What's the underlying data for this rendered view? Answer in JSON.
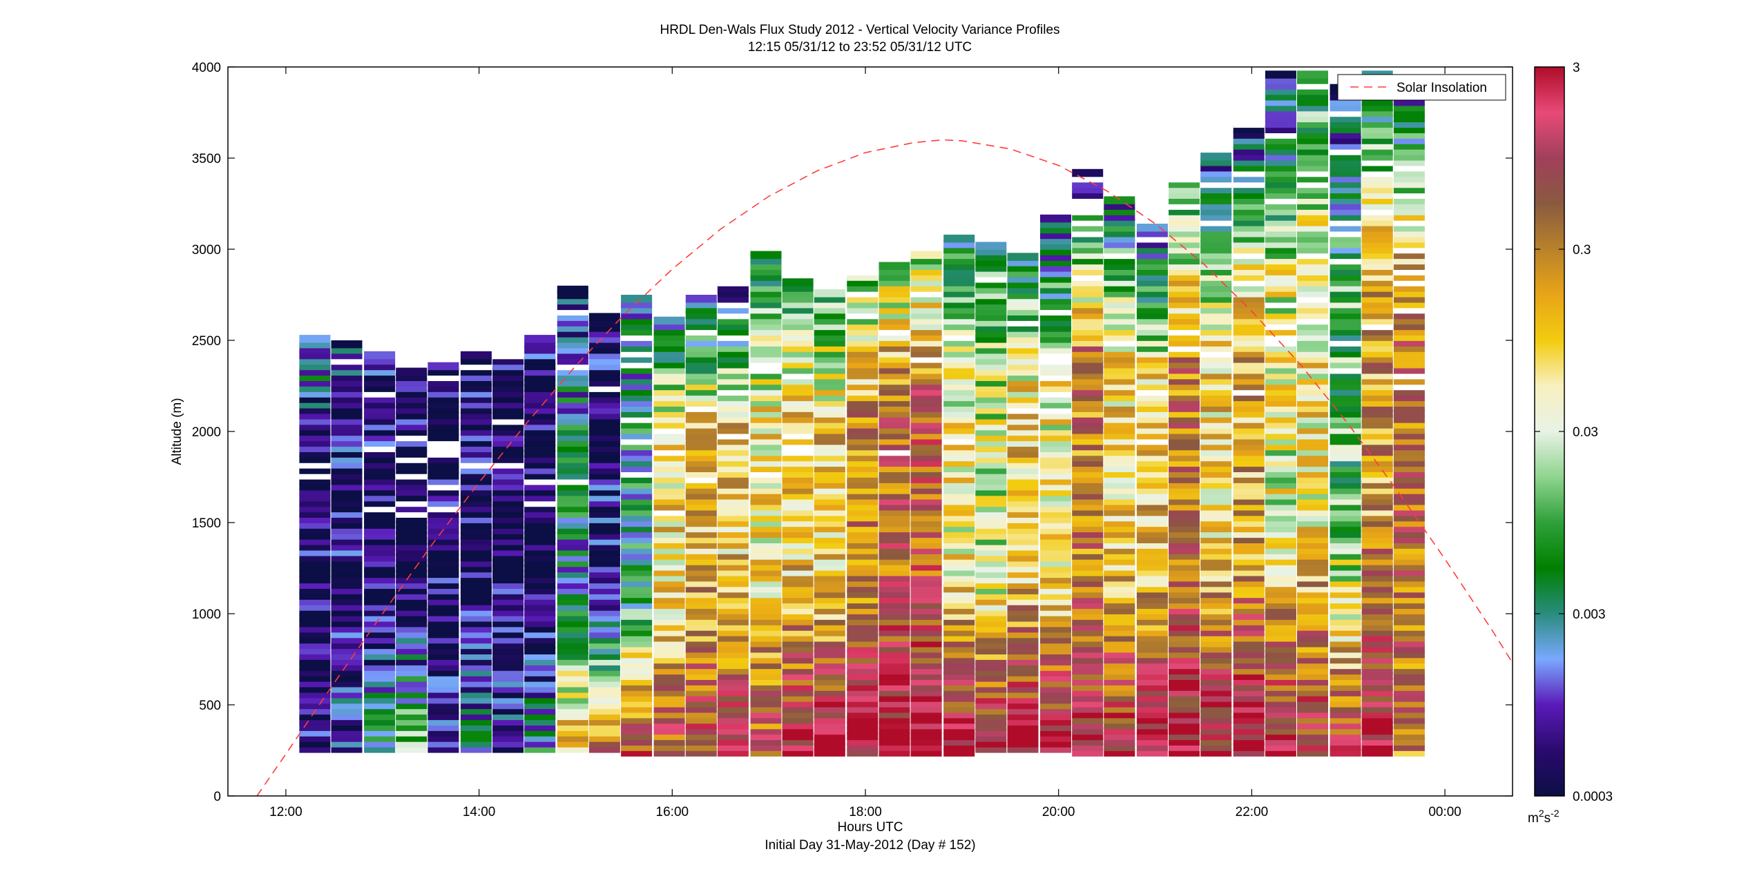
{
  "chart_data": {
    "type": "heatmap",
    "title": "HRDL Den-Wals Flux Study 2012 - Vertical Velocity Variance Profiles",
    "subtitle": "12:15 05/31/12 to 23:52 05/31/12  UTC",
    "xlabel": "Hours UTC",
    "xlabel2": "Initial Day 31-May-2012 (Day # 152)",
    "ylabel": "Altitude (m)",
    "xlim": [
      11.4,
      24.7
    ],
    "ylim": [
      0,
      4000
    ],
    "x_ticks": [
      {
        "value": 12,
        "label": "12:00"
      },
      {
        "value": 14,
        "label": "14:00"
      },
      {
        "value": 16,
        "label": "16:00"
      },
      {
        "value": 18,
        "label": "18:00"
      },
      {
        "value": 20,
        "label": "20:00"
      },
      {
        "value": 22,
        "label": "22:00"
      },
      {
        "value": 24,
        "label": "00:00"
      }
    ],
    "y_ticks": [
      {
        "value": 0,
        "label": "0"
      },
      {
        "value": 500,
        "label": "500"
      },
      {
        "value": 1000,
        "label": "1000"
      },
      {
        "value": 1500,
        "label": "1500"
      },
      {
        "value": 2000,
        "label": "2000"
      },
      {
        "value": 2500,
        "label": "2500"
      },
      {
        "value": 3000,
        "label": "3000"
      },
      {
        "value": 3500,
        "label": "3500"
      },
      {
        "value": 4000,
        "label": "4000"
      }
    ],
    "colorbar": {
      "scale": "log",
      "range": [
        0.0003,
        3
      ],
      "ticks": [
        {
          "value": 0.0003,
          "label": "0.0003"
        },
        {
          "value": 0.003,
          "label": "0.003"
        },
        {
          "value": 0.03,
          "label": "0.03"
        },
        {
          "value": 0.3,
          "label": "0.3"
        },
        {
          "value": 3,
          "label": "3"
        }
      ],
      "unit_base": "m",
      "unit_exp1": "2",
      "unit_mid": "s",
      "unit_exp2": "-2",
      "stops": [
        "#0b0f45",
        "#2a0a6e",
        "#5a1ab8",
        "#7aa8ff",
        "#2a8c7e",
        "#008000",
        "#2fa03a",
        "#8fd48f",
        "#e8f2e6",
        "#f8f0c0",
        "#f2cc10",
        "#e8a418",
        "#b8822a",
        "#8a5a40",
        "#a0405a",
        "#e84a78",
        "#b00c2a"
      ]
    },
    "legend": {
      "entries": [
        "Solar Insolation"
      ],
      "placement": "top-right",
      "line_color": "#ff3b3b"
    },
    "series": [
      {
        "name": "Solar Insolation",
        "style": "dashed",
        "x": [
          11.7,
          12.0,
          12.5,
          13.0,
          13.5,
          14.0,
          14.5,
          15.0,
          15.5,
          16.0,
          16.5,
          17.0,
          17.5,
          18.0,
          18.5,
          18.8,
          19.0,
          19.5,
          20.0,
          20.5,
          21.0,
          21.5,
          22.0,
          22.5,
          23.0,
          23.5,
          24.0,
          24.5,
          24.7
        ],
        "y": [
          0,
          230,
          620,
          1000,
          1370,
          1720,
          2050,
          2360,
          2640,
          2890,
          3110,
          3290,
          3430,
          3530,
          3585,
          3600,
          3595,
          3550,
          3460,
          3320,
          3140,
          2920,
          2660,
          2370,
          2040,
          1680,
          1300,
          900,
          730
        ]
      },
      {
        "name": "Vertical Velocity Variance Profiles",
        "profiles": [
          {
            "t": 12.3,
            "top": 2550,
            "bottom": 250,
            "dom": 0.0004,
            "low": 0.0004,
            "up": 0.003
          },
          {
            "t": 12.63,
            "top": 2500,
            "bottom": 250,
            "dom": 0.0005,
            "low": 0.001,
            "up": 0.001
          },
          {
            "t": 12.97,
            "top": 2450,
            "bottom": 250,
            "dom": 0.0004,
            "low": 0.004,
            "up": 0.0005
          },
          {
            "t": 13.3,
            "top": 2350,
            "bottom": 250,
            "dom": 0.0004,
            "low": 0.02,
            "up": 0.0004
          },
          {
            "t": 13.63,
            "top": 2400,
            "bottom": 250,
            "dom": 0.0004,
            "low": 0.0006,
            "up": 0.0004
          },
          {
            "t": 13.97,
            "top": 2450,
            "bottom": 250,
            "dom": 0.0004,
            "low": 0.003,
            "up": 0.0004
          },
          {
            "t": 14.3,
            "top": 2500,
            "bottom": 250,
            "dom": 0.0004,
            "low": 0.001,
            "up": 0.0004
          },
          {
            "t": 14.63,
            "top": 2550,
            "bottom": 250,
            "dom": 0.0004,
            "low": 0.004,
            "up": 0.0005
          },
          {
            "t": 14.97,
            "top": 2800,
            "bottom": 250,
            "dom": 0.003,
            "low": 0.15,
            "up": 0.001
          },
          {
            "t": 15.3,
            "top": 2650,
            "bottom": 250,
            "dom": 0.0006,
            "low": 0.3,
            "up": 0.0004
          },
          {
            "t": 15.63,
            "top": 2750,
            "bottom": 230,
            "dom": 0.004,
            "low": 1.0,
            "up": 0.002
          },
          {
            "t": 15.97,
            "top": 2650,
            "bottom": 230,
            "dom": 0.08,
            "low": 0.8,
            "up": 0.003
          },
          {
            "t": 16.3,
            "top": 2750,
            "bottom": 230,
            "dom": 0.15,
            "low": 0.9,
            "up": 0.001
          },
          {
            "t": 16.63,
            "top": 2850,
            "bottom": 230,
            "dom": 0.1,
            "low": 2.0,
            "up": 0.0008
          },
          {
            "t": 16.97,
            "top": 3000,
            "bottom": 230,
            "dom": 0.06,
            "low": 0.7,
            "up": 0.005
          },
          {
            "t": 17.3,
            "top": 2850,
            "bottom": 230,
            "dom": 0.1,
            "low": 3.0,
            "up": 0.008
          },
          {
            "t": 17.63,
            "top": 2800,
            "bottom": 230,
            "dom": 0.1,
            "low": 3.0,
            "up": 0.01
          },
          {
            "t": 17.97,
            "top": 2900,
            "bottom": 230,
            "dom": 0.3,
            "low": 3.0,
            "up": 0.01
          },
          {
            "t": 18.3,
            "top": 2950,
            "bottom": 230,
            "dom": 0.5,
            "low": 3.0,
            "up": 0.02
          },
          {
            "t": 18.63,
            "top": 3000,
            "bottom": 230,
            "dom": 0.6,
            "low": 3.0,
            "up": 0.02
          },
          {
            "t": 18.97,
            "top": 3100,
            "bottom": 230,
            "dom": 0.05,
            "low": 3.0,
            "up": 0.005
          },
          {
            "t": 19.3,
            "top": 3050,
            "bottom": 250,
            "dom": 0.03,
            "low": 2.5,
            "up": 0.005
          },
          {
            "t": 19.63,
            "top": 3000,
            "bottom": 250,
            "dom": 0.1,
            "low": 3.0,
            "up": 0.003
          },
          {
            "t": 19.97,
            "top": 3200,
            "bottom": 250,
            "dom": 0.05,
            "low": 2.5,
            "up": 0.001
          },
          {
            "t": 20.3,
            "top": 3450,
            "bottom": 230,
            "dom": 0.3,
            "low": 1.5,
            "up": 0.0008
          },
          {
            "t": 20.63,
            "top": 3300,
            "bottom": 230,
            "dom": 0.08,
            "low": 2.0,
            "up": 0.002
          },
          {
            "t": 20.97,
            "top": 3150,
            "bottom": 230,
            "dom": 0.1,
            "low": 3.0,
            "up": 0.001
          },
          {
            "t": 21.3,
            "top": 3450,
            "bottom": 230,
            "dom": 0.3,
            "low": 3.0,
            "up": 0.004
          },
          {
            "t": 21.63,
            "top": 3550,
            "bottom": 230,
            "dom": 0.08,
            "low": 2.0,
            "up": 0.0008
          },
          {
            "t": 21.97,
            "top": 3750,
            "bottom": 230,
            "dom": 0.15,
            "low": 2.5,
            "up": 0.0005
          },
          {
            "t": 22.3,
            "top": 4000,
            "bottom": 230,
            "dom": 0.04,
            "low": 2.0,
            "up": 0.0008
          },
          {
            "t": 22.63,
            "top": 4000,
            "bottom": 230,
            "dom": 0.06,
            "low": 1.5,
            "up": 0.005
          },
          {
            "t": 22.97,
            "top": 4000,
            "bottom": 230,
            "dom": 0.01,
            "low": 1.0,
            "up": 0.0006
          },
          {
            "t": 23.3,
            "top": 4000,
            "bottom": 230,
            "dom": 0.2,
            "low": 3.0,
            "up": 0.002
          },
          {
            "t": 23.63,
            "top": 3850,
            "bottom": 230,
            "dom": 0.4,
            "low": 0.3,
            "up": 0.002
          }
        ]
      }
    ]
  }
}
